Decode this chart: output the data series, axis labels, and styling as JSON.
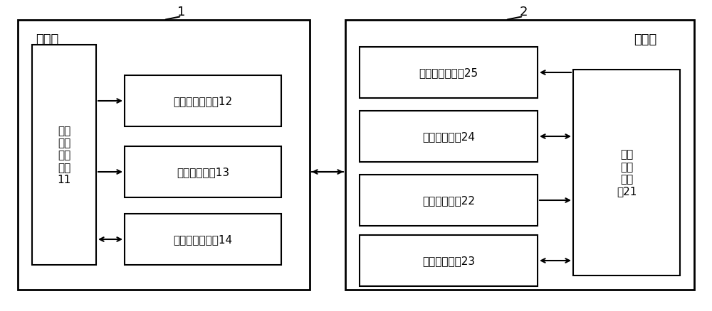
{
  "bg_color": "#ffffff",
  "box_color": "#ffffff",
  "box_edge": "#000000",
  "text_color": "#000000",
  "label1": "1",
  "label2": "2",
  "group1_label": "充电桩",
  "group2_label": "机器人",
  "box11_text": "充电\n桩处\n理器\n模块\n11",
  "box12_text": "红外灯光源模块12",
  "box13_text": "发射编码模块13",
  "box14_text": "充电桩通讯模块14",
  "box21_text": "机器\n人控\n制模\n块21",
  "box22_text": "接收编码模块22",
  "box23_text": "图像识别模块23",
  "box24_text": "行走控制模块24",
  "box25_text": "机器人通讯模块25",
  "font_size_box": 11,
  "font_size_label": 13,
  "font_size_group": 13
}
